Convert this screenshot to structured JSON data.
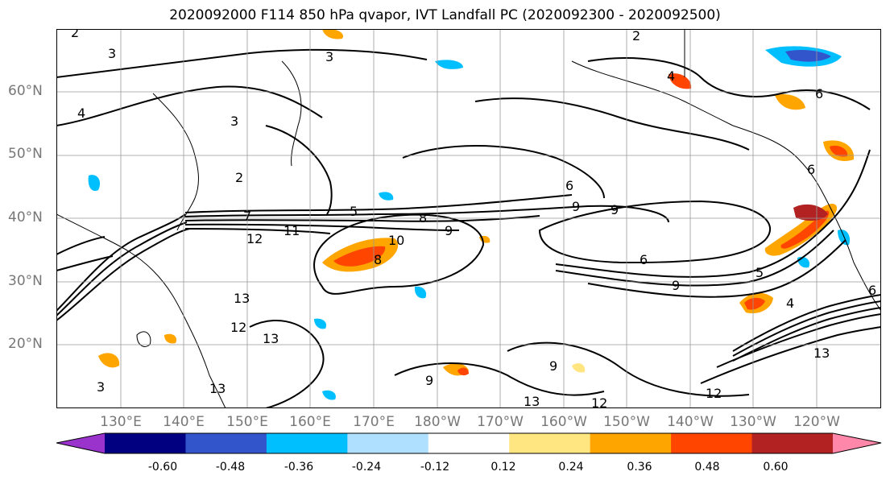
{
  "title": "2020092000 F114 850 hPa qvapor, IVT Landfall PC (2020092300 - 2020092500)",
  "map": {
    "lat_labels": [
      "60°N",
      "50°N",
      "40°N",
      "30°N",
      "20°N"
    ],
    "lon_labels": [
      "130°E",
      "140°E",
      "150°E",
      "160°E",
      "170°E",
      "180°W",
      "170°W",
      "160°W",
      "150°W",
      "140°W",
      "130°W",
      "120°W"
    ],
    "contour_labels": [
      "2",
      "3",
      "4",
      "2",
      "3",
      "3",
      "2",
      "12",
      "11",
      "7",
      "5",
      "6",
      "8",
      "9",
      "9",
      "9",
      "10",
      "8",
      "6",
      "5",
      "4",
      "13",
      "12",
      "12",
      "13",
      "13",
      "13",
      "12",
      "13",
      "9",
      "9",
      "6",
      "6",
      "9",
      "3",
      "4",
      "6"
    ],
    "grid": true,
    "coastline_color": "#000000"
  },
  "colorbar": {
    "ticks": [
      "-0.60",
      "-0.48",
      "-0.36",
      "-0.24",
      "-0.12",
      "0.12",
      "0.24",
      "0.36",
      "0.48",
      "0.60"
    ],
    "colors": [
      "#9933cc",
      "#000080",
      "#3355cc",
      "#00bfff",
      "#b0e0ff",
      "#ffffff",
      "#ffe680",
      "#ffa500",
      "#ff4500",
      "#b22222",
      "#ff88aa"
    ],
    "extend": "both"
  }
}
